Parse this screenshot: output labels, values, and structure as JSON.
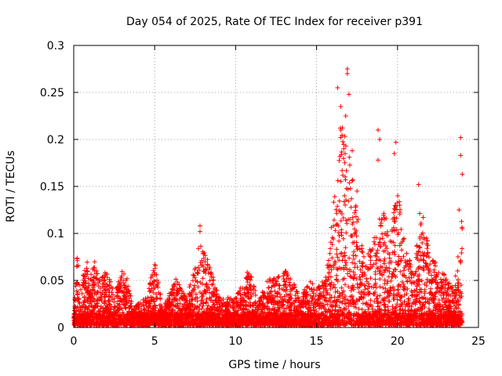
{
  "chart_data": {
    "type": "scatter",
    "title": "Day 054 of 2025, Rate Of TEC Index for receiver p391",
    "xlabel": "GPS time / hours",
    "ylabel": "ROTI / TECUs",
    "xlim": [
      0,
      25
    ],
    "ylim": [
      0,
      0.3
    ],
    "xticks": [
      0,
      5,
      10,
      15,
      20,
      25
    ],
    "xtick_labels": [
      "0",
      "5",
      "10",
      "15",
      "20",
      "25"
    ],
    "yticks": [
      0,
      0.05,
      0.1,
      0.15,
      0.2,
      0.25,
      0.3
    ],
    "ytick_labels": [
      "0",
      "0.05",
      "0.1",
      "0.15",
      "0.2",
      "0.25",
      "0.3"
    ],
    "grid": true,
    "marker": "+",
    "color": "#ff0000",
    "envelope": [
      {
        "x": 0.0,
        "y": 0.02
      },
      {
        "x": 0.2,
        "y": 0.08
      },
      {
        "x": 0.5,
        "y": 0.05
      },
      {
        "x": 0.8,
        "y": 0.07
      },
      {
        "x": 1.0,
        "y": 0.05
      },
      {
        "x": 1.3,
        "y": 0.07
      },
      {
        "x": 1.6,
        "y": 0.05
      },
      {
        "x": 2.0,
        "y": 0.06
      },
      {
        "x": 2.5,
        "y": 0.04
      },
      {
        "x": 3.0,
        "y": 0.06
      },
      {
        "x": 3.3,
        "y": 0.05
      },
      {
        "x": 3.7,
        "y": 0.02
      },
      {
        "x": 4.5,
        "y": 0.03
      },
      {
        "x": 5.0,
        "y": 0.07
      },
      {
        "x": 5.5,
        "y": 0.02
      },
      {
        "x": 6.3,
        "y": 0.05
      },
      {
        "x": 7.0,
        "y": 0.03
      },
      {
        "x": 7.8,
        "y": 0.09
      },
      {
        "x": 8.5,
        "y": 0.06
      },
      {
        "x": 9.0,
        "y": 0.03
      },
      {
        "x": 10.0,
        "y": 0.03
      },
      {
        "x": 10.8,
        "y": 0.06
      },
      {
        "x": 11.5,
        "y": 0.03
      },
      {
        "x": 12.0,
        "y": 0.05
      },
      {
        "x": 12.5,
        "y": 0.05
      },
      {
        "x": 13.2,
        "y": 0.06
      },
      {
        "x": 14.0,
        "y": 0.03
      },
      {
        "x": 14.5,
        "y": 0.05
      },
      {
        "x": 15.0,
        "y": 0.04
      },
      {
        "x": 15.5,
        "y": 0.05
      },
      {
        "x": 16.0,
        "y": 0.12
      },
      {
        "x": 16.5,
        "y": 0.22
      },
      {
        "x": 17.0,
        "y": 0.2
      },
      {
        "x": 17.5,
        "y": 0.12
      },
      {
        "x": 18.0,
        "y": 0.07
      },
      {
        "x": 18.5,
        "y": 0.09
      },
      {
        "x": 19.0,
        "y": 0.15
      },
      {
        "x": 19.5,
        "y": 0.09
      },
      {
        "x": 20.0,
        "y": 0.15
      },
      {
        "x": 20.5,
        "y": 0.08
      },
      {
        "x": 21.0,
        "y": 0.06
      },
      {
        "x": 21.5,
        "y": 0.14
      },
      {
        "x": 22.0,
        "y": 0.07
      },
      {
        "x": 22.5,
        "y": 0.07
      },
      {
        "x": 23.0,
        "y": 0.05
      },
      {
        "x": 23.5,
        "y": 0.04
      },
      {
        "x": 24.0,
        "y": 0.12
      }
    ],
    "outliers": [
      {
        "x": 7.8,
        "y": 0.108
      },
      {
        "x": 7.8,
        "y": 0.102
      },
      {
        "x": 7.7,
        "y": 0.084
      },
      {
        "x": 16.3,
        "y": 0.255
      },
      {
        "x": 16.9,
        "y": 0.275
      },
      {
        "x": 16.9,
        "y": 0.27
      },
      {
        "x": 17.0,
        "y": 0.248
      },
      {
        "x": 16.5,
        "y": 0.235
      },
      {
        "x": 16.8,
        "y": 0.225
      },
      {
        "x": 16.5,
        "y": 0.21
      },
      {
        "x": 17.2,
        "y": 0.188
      },
      {
        "x": 18.8,
        "y": 0.21
      },
      {
        "x": 18.9,
        "y": 0.2
      },
      {
        "x": 18.8,
        "y": 0.178
      },
      {
        "x": 19.9,
        "y": 0.197
      },
      {
        "x": 19.8,
        "y": 0.185
      },
      {
        "x": 21.3,
        "y": 0.152
      },
      {
        "x": 23.9,
        "y": 0.202
      },
      {
        "x": 23.9,
        "y": 0.183
      },
      {
        "x": 24.0,
        "y": 0.163
      },
      {
        "x": 23.8,
        "y": 0.125
      },
      {
        "x": 24.0,
        "y": 0.105
      },
      {
        "x": 17.5,
        "y": 0.145
      }
    ]
  }
}
